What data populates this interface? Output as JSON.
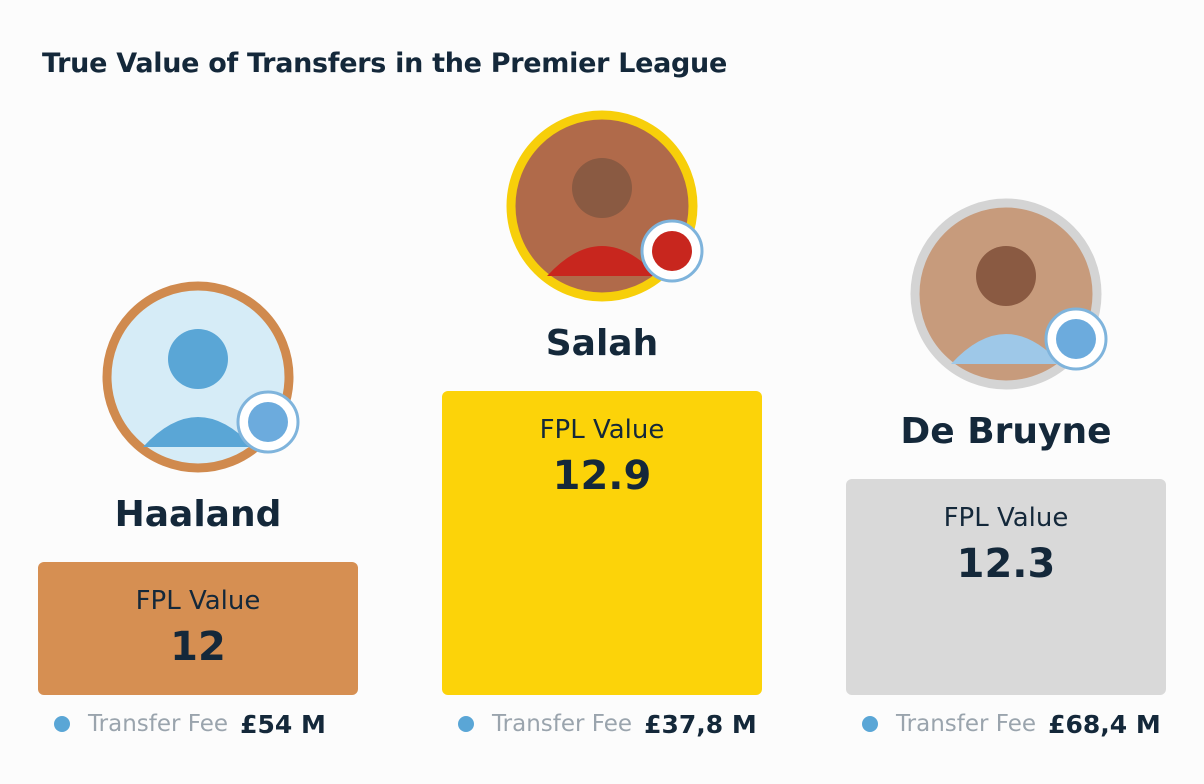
{
  "title": "True Value of Transfers in the Premier League",
  "players": [
    {
      "name": "Haaland",
      "fpl_label": "FPL Value",
      "fpl_value": 12,
      "fee_label": "Transfer Fee",
      "fee": "£54 M"
    },
    {
      "name": "Salah",
      "fpl_label": "FPL Value",
      "fpl_value": 12.9,
      "fee_label": "Transfer Fee",
      "fee": "£37,8 M"
    },
    {
      "name": "De Bruyne",
      "fpl_label": "FPL Value",
      "fpl_value": 12.3,
      "fee_label": "Transfer Fee",
      "fee": "£68,4 M"
    }
  ]
}
